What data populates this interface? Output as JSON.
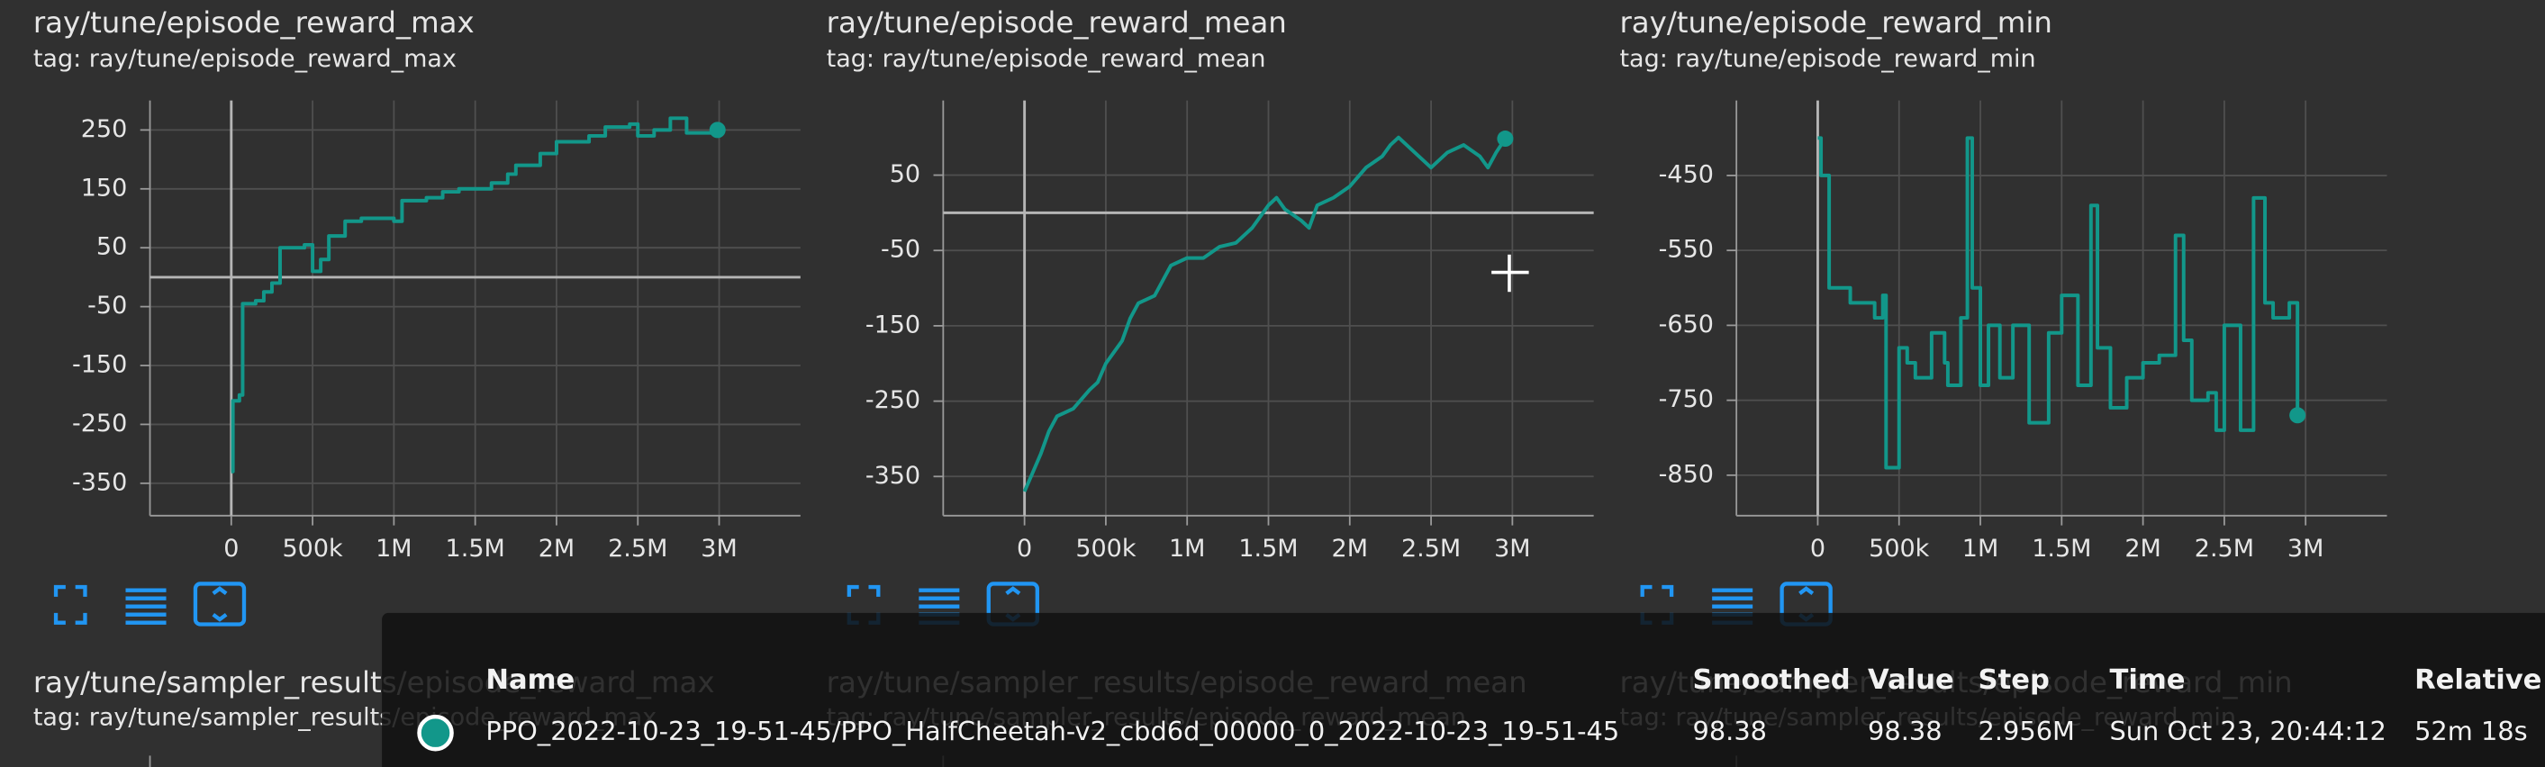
{
  "chart_data": [
    {
      "type": "line",
      "step": true,
      "title": "ray/tune/episode_reward_max",
      "subtitle": "tag: ray/tune/episode_reward_max",
      "color": "#12978a",
      "grid": true,
      "x": [
        0,
        10000,
        50000,
        70000,
        150000,
        200000,
        250000,
        300000,
        450000,
        500000,
        550000,
        600000,
        700000,
        800000,
        1000000,
        1050000,
        1200000,
        1300000,
        1400000,
        1600000,
        1700000,
        1750000,
        1900000,
        2000000,
        2200000,
        2300000,
        2450000,
        2500000,
        2600000,
        2700000,
        2800000,
        2990000
      ],
      "values": [
        -330,
        -210,
        -200,
        -45,
        -40,
        -25,
        -10,
        50,
        55,
        10,
        30,
        70,
        95,
        100,
        95,
        130,
        135,
        145,
        150,
        160,
        175,
        190,
        210,
        230,
        240,
        255,
        260,
        240,
        250,
        270,
        245,
        250
      ],
      "xlim": [
        -500000,
        3500000
      ],
      "ylim": [
        -405,
        300
      ],
      "xticks": [
        0,
        {
          "value": 500000,
          "label": "500k"
        },
        {
          "value": 1000000,
          "label": "1M"
        },
        {
          "value": 1500000,
          "label": "1.5M"
        },
        {
          "value": 2000000,
          "label": "2M"
        },
        {
          "value": 2500000,
          "label": "2.5M"
        },
        {
          "value": 3000000,
          "label": "3M"
        }
      ],
      "yticks": [
        250,
        150,
        50,
        -50,
        -150,
        -250,
        -350
      ]
    },
    {
      "type": "line",
      "step": false,
      "title": "ray/tune/episode_reward_mean",
      "subtitle": "tag: ray/tune/episode_reward_mean",
      "color": "#12978a",
      "grid": true,
      "x": [
        0,
        50000,
        100000,
        150000,
        200000,
        250000,
        300000,
        400000,
        450000,
        500000,
        550000,
        600000,
        650000,
        700000,
        800000,
        850000,
        900000,
        1000000,
        1100000,
        1200000,
        1300000,
        1400000,
        1500000,
        1550000,
        1600000,
        1700000,
        1750000,
        1800000,
        1900000,
        2000000,
        2100000,
        2200000,
        2250000,
        2300000,
        2400000,
        2500000,
        2600000,
        2700000,
        2800000,
        2850000,
        2900000,
        2956000
      ],
      "values": [
        -370,
        -345,
        -320,
        -290,
        -270,
        -265,
        -260,
        -235,
        -225,
        -200,
        -185,
        -170,
        -140,
        -120,
        -110,
        -90,
        -70,
        -60,
        -60,
        -45,
        -40,
        -20,
        10,
        20,
        5,
        -10,
        -20,
        10,
        20,
        35,
        60,
        75,
        90,
        100,
        80,
        60,
        80,
        90,
        75,
        60,
        80,
        98.38
      ],
      "xlim": [
        -500000,
        3500000
      ],
      "ylim": [
        -402,
        149
      ],
      "xticks": [
        0,
        {
          "value": 500000,
          "label": "500k"
        },
        {
          "value": 1000000,
          "label": "1M"
        },
        {
          "value": 1500000,
          "label": "1.5M"
        },
        {
          "value": 2000000,
          "label": "2M"
        },
        {
          "value": 2500000,
          "label": "2.5M"
        },
        {
          "value": 3000000,
          "label": "3M"
        }
      ],
      "yticks": [
        50,
        -50,
        -150,
        -250,
        -350
      ]
    },
    {
      "type": "line",
      "step": true,
      "title": "ray/tune/episode_reward_min",
      "subtitle": "tag: ray/tune/episode_reward_min",
      "color": "#12978a",
      "grid": true,
      "x": [
        0,
        20000,
        70000,
        200000,
        350000,
        400000,
        420000,
        500000,
        550000,
        600000,
        700000,
        780000,
        800000,
        880000,
        920000,
        950000,
        1000000,
        1050000,
        1120000,
        1200000,
        1300000,
        1420000,
        1500000,
        1600000,
        1680000,
        1720000,
        1800000,
        1900000,
        2000000,
        2100000,
        2200000,
        2250000,
        2300000,
        2400000,
        2450000,
        2500000,
        2600000,
        2680000,
        2750000,
        2800000,
        2900000,
        2950000
      ],
      "values": [
        -400,
        -450,
        -600,
        -620,
        -640,
        -610,
        -840,
        -680,
        -700,
        -720,
        -660,
        -700,
        -730,
        -640,
        -400,
        -600,
        -730,
        -650,
        -720,
        -650,
        -780,
        -660,
        -610,
        -730,
        -490,
        -680,
        -760,
        -720,
        -700,
        -690,
        -530,
        -670,
        -750,
        -740,
        -790,
        -650,
        -790,
        -480,
        -620,
        -640,
        -620,
        -770
      ],
      "xlim": [
        -500000,
        3500000
      ],
      "ylim": [
        -904,
        -350
      ],
      "xticks": [
        0,
        {
          "value": 500000,
          "label": "500k"
        },
        {
          "value": 1000000,
          "label": "1M"
        },
        {
          "value": 1500000,
          "label": "1.5M"
        },
        {
          "value": 2000000,
          "label": "2M"
        },
        {
          "value": 2500000,
          "label": "2.5M"
        },
        {
          "value": 3000000,
          "label": "3M"
        }
      ],
      "yticks": [
        -450,
        -550,
        -650,
        -750,
        -850
      ]
    }
  ],
  "lower_panels": [
    {
      "title": "ray/tune/sampler_results/episode_reward_max",
      "subtitle": "tag: ray/tune/sampler_results/episode_reward_max"
    },
    {
      "title": "ray/tune/sampler_results/episode_reward_mean",
      "subtitle": "tag: ray/tune/sampler_results/episode_reward_mean"
    },
    {
      "title": "ray/tune/sampler_results/episode_reward_min",
      "subtitle": "tag: ray/tune/sampler_results/episode_reward_min"
    }
  ],
  "tooltip": {
    "header": [
      "Name",
      "Smoothed",
      "Value",
      "Step",
      "Time",
      "Relative"
    ],
    "rows": [
      [
        "PPO_2022-10-23_19-51-45/PPO_HalfCheetah-v2_cbd6d_00000_0_2022-10-23_19-51-45",
        "98.38",
        "98.38",
        "2.956M",
        "Sun Oct 23, 20:44:12",
        "52m 18s"
      ]
    ]
  }
}
